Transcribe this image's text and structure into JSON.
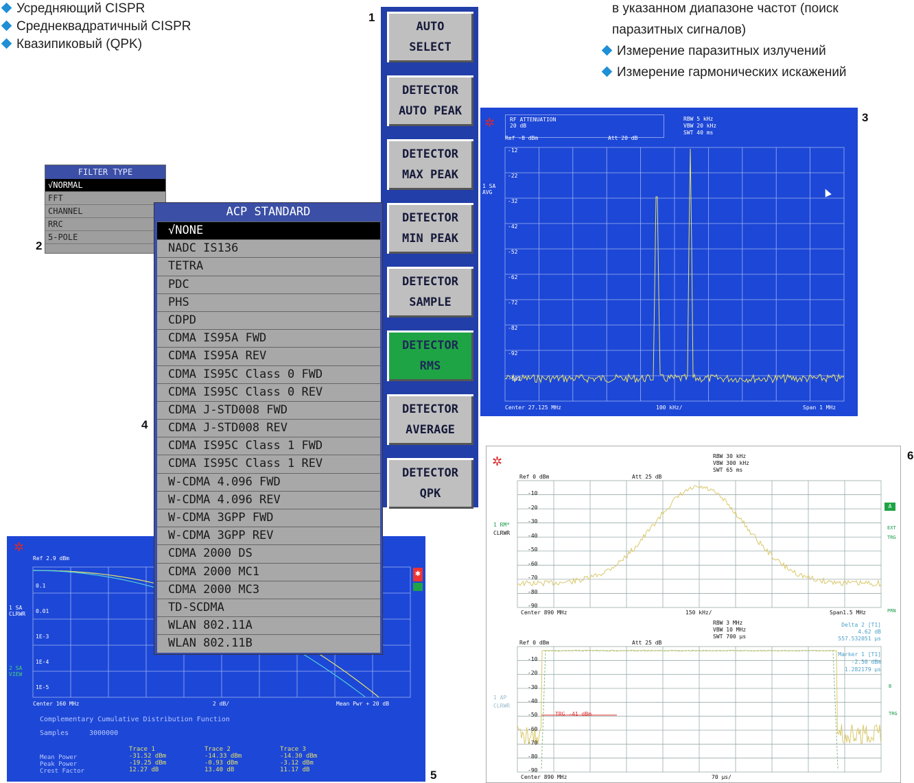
{
  "bullets_left": [
    "Усредняющий CISPR",
    "Среднеквадратичный CISPR",
    "Квазипиковый (QPK)"
  ],
  "bullets_right": {
    "continuation_line1": "в указанном диапазоне частот (поиск",
    "continuation_line2": "паразитных сигналов)",
    "items": [
      "Измерение паразитных излучений",
      "Измерение гармонических искажений"
    ]
  },
  "figure_numbers": {
    "n1": "1",
    "n2": "2",
    "n3": "3",
    "n4": "4",
    "n5": "5",
    "n6": "6"
  },
  "softkeys": [
    {
      "line1": "AUTO",
      "line2": "SELECT",
      "active": false
    },
    {
      "line1": "DETECTOR",
      "line2": "AUTO PEAK",
      "active": false
    },
    {
      "line1": "DETECTOR",
      "line2": "MAX PEAK",
      "active": false
    },
    {
      "line1": "DETECTOR",
      "line2": "MIN PEAK",
      "active": false
    },
    {
      "line1": "DETECTOR",
      "line2": "SAMPLE",
      "active": false
    },
    {
      "line1": "DETECTOR",
      "line2": "RMS",
      "active": true
    },
    {
      "line1": "DETECTOR",
      "line2": "AVERAGE",
      "active": false
    },
    {
      "line1": "DETECTOR",
      "line2": "QPK",
      "active": false
    }
  ],
  "filter_menu": {
    "title": "FILTER TYPE",
    "items": [
      "√NORMAL",
      "FFT",
      "CHANNEL",
      "RRC",
      "5-POLE"
    ],
    "selected_index": 0
  },
  "acp_menu": {
    "title": "ACP STANDARD",
    "items": [
      "√NONE",
      "NADC IS136",
      "TETRA",
      "PDC",
      "PHS",
      "CDPD",
      "CDMA IS95A FWD",
      "CDMA IS95A REV",
      "CDMA IS95C Class 0 FWD",
      "CDMA IS95C Class 0 REV",
      "CDMA J-STD008 FWD",
      "CDMA J-STD008 REV",
      "CDMA IS95C Class 1 FWD",
      "CDMA IS95C Class 1 REV",
      "W-CDMA 4.096 FWD",
      "W-CDMA 4.096 REV",
      "W-CDMA 3GPP FWD",
      "W-CDMA 3GPP REV",
      "CDMA 2000 DS",
      "CDMA 2000 MC1",
      "CDMA 2000 MC3",
      "TD-SCDMA",
      "WLAN 802.11A",
      "WLAN 802.11B"
    ],
    "selected_index": 0
  },
  "screen3": {
    "atten_label": "RF ATTENUATION",
    "atten_value": "20 dB",
    "ref": "Ref -8 dBm",
    "att": "Att 20 dB",
    "rbw": "RBW 5 kHz",
    "vbw": "VBW 20 kHz",
    "swt": "SWT 40 ms",
    "trace_label": "1 SA",
    "trace_mode": "AVG",
    "center": "Center 27.125 MHz",
    "div": "100 kHz/",
    "span": "Span 1 MHz",
    "y_ticks": [
      "-12",
      "-22",
      "-32",
      "-42",
      "-52",
      "-62",
      "-72",
      "-82",
      "-92",
      "-102"
    ]
  },
  "screen5": {
    "ref": "Ref 2.9 dBm",
    "trace1": "1 SA",
    "trace1_mode": "CLRWR",
    "trace2": "2 SA",
    "trace2_mode": "VIEW",
    "y_ticks": [
      "0.1",
      "0.01",
      "1E-3",
      "1E-4",
      "1E-5"
    ],
    "center": "Center 160 MHz",
    "div": "2 dB/",
    "mean_pwr": "Mean Pwr + 20 dB",
    "func_title": "Complementary Cumulative Distribution Function",
    "samples_label": "Samples",
    "samples_value": "3000000",
    "row_labels": [
      "Mean Power",
      "Peak Power",
      "Crest Factor"
    ],
    "traces": [
      {
        "name": "Trace 1",
        "values": [
          "-31.52 dBm",
          "-19.25 dBm",
          "12.27 dB"
        ]
      },
      {
        "name": "Trace 2",
        "values": [
          "-14.33 dBm",
          "-0.93 dBm",
          "13.40 dB"
        ]
      },
      {
        "name": "Trace 3",
        "values": [
          "-14.30 dBm",
          "-3.12 dBm",
          "11.17 dB"
        ]
      }
    ]
  },
  "screen6": {
    "top": {
      "rbw": "RBW 30 kHz",
      "vbw": "VBW 300 kHz",
      "swt": "SWT 65 ms",
      "ref": "Ref 0 dBm",
      "att": "Att 25 dB",
      "trace": "1 RM*",
      "trace_mode": "CLRWR",
      "center": "Center 890 MHz",
      "div": "150 kHz/",
      "span": "Span1.5 MHz",
      "y_ticks": [
        "-10",
        "-20",
        "-30",
        "-40",
        "-50",
        "-60",
        "-70",
        "-80",
        "-90"
      ],
      "badge_a": "A",
      "side_labels": [
        "EXT",
        "TRG",
        "PRN"
      ]
    },
    "bottom": {
      "rbw": "RBW 3 MHz",
      "vbw": "VBW 10 MHz",
      "swt": "SWT 700 µs",
      "ref": "Ref 0 dBm",
      "att": "Att 25 dB",
      "delta": "Delta 2 [T1]",
      "delta_val1": "4.62 dB",
      "delta_val2": "557.532051 µs",
      "marker": "Marker 1 [T1]",
      "marker_val1": "-2.50 dBm",
      "marker_val2": "1.282179 µs",
      "trace": "1 AP",
      "trace_mode": "CLRWR",
      "trg_label": "TRG -41 dBm",
      "center": "Center 890 MHz",
      "div": "70 µs/",
      "y_ticks": [
        "-10",
        "-20",
        "-30",
        "-40",
        "-50",
        "-60",
        "-70",
        "-80",
        "-90"
      ],
      "side_labels": [
        "B",
        "TRG"
      ]
    }
  }
}
